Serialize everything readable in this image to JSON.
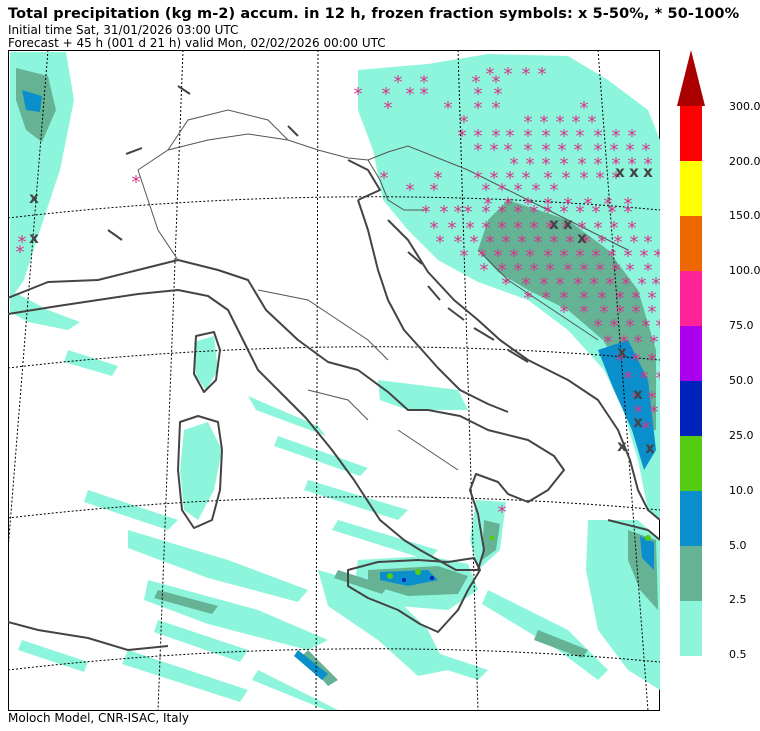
{
  "header": {
    "title": "Total precipitation (kg m-2) accum. in 12 h, frozen fraction symbols: x 5-50%, * 50-100%",
    "initial_time": "Initial time  Sat, 31/01/2026  03:00 UTC",
    "forecast": "Forecast  +  45 h  (001 d 21 h)  valid Mon, 02/02/2026 00:00 UTC"
  },
  "footer": {
    "credit": "Moloch Model, CNR-ISAC, Italy"
  },
  "colorbar": {
    "levels": [
      "0.5",
      "2.5",
      "5.0",
      "10.0",
      "25.0",
      "50.0",
      "75.0",
      "100.0",
      "150.0",
      "200.0",
      "300.0"
    ],
    "colors": [
      "#8cf5dc",
      "#66b294",
      "#0a8fcc",
      "#55cc11",
      "#0022bb",
      "#aa00ee",
      "#ff2299",
      "#ee6600",
      "#ffff00",
      "#ff0000",
      "#aa0000"
    ]
  },
  "map": {
    "frozen_symbols": {
      "x": "5-50%",
      "*": "50-100%"
    },
    "symbol_colors": {
      "star": "#d6348c",
      "cross": "#444444"
    },
    "coastline_color": "#444444",
    "border_color": "#555555"
  }
}
